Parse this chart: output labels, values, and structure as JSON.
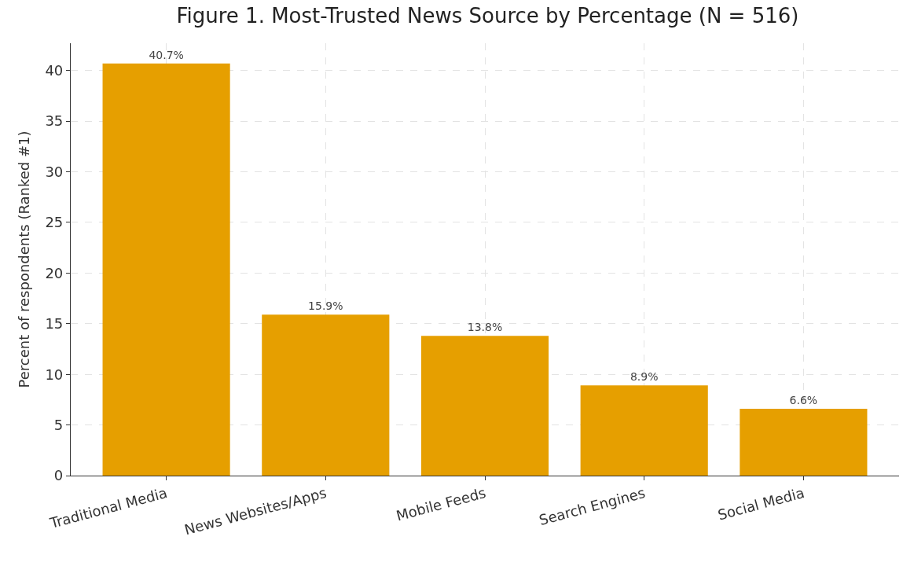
{
  "chart_data": {
    "type": "bar",
    "title": "Figure 1. Most-Trusted News Source by Percentage (N = 516)",
    "ylabel": "Percent of respondents (Ranked #1)",
    "categories": [
      "Traditional Media",
      "News Websites/Apps",
      "Mobile Feeds",
      "Search Engines",
      "Social Media"
    ],
    "values": [
      40.7,
      15.9,
      13.8,
      8.9,
      6.6
    ],
    "value_labels": [
      "40.7%",
      "15.9%",
      "13.8%",
      "8.9%",
      "6.6%"
    ],
    "color": "#e69f00",
    "ylim": [
      0,
      42.7
    ],
    "yticks": [
      0,
      5,
      10,
      15,
      20,
      25,
      30,
      35,
      40
    ],
    "grid": true,
    "legend": false
  }
}
